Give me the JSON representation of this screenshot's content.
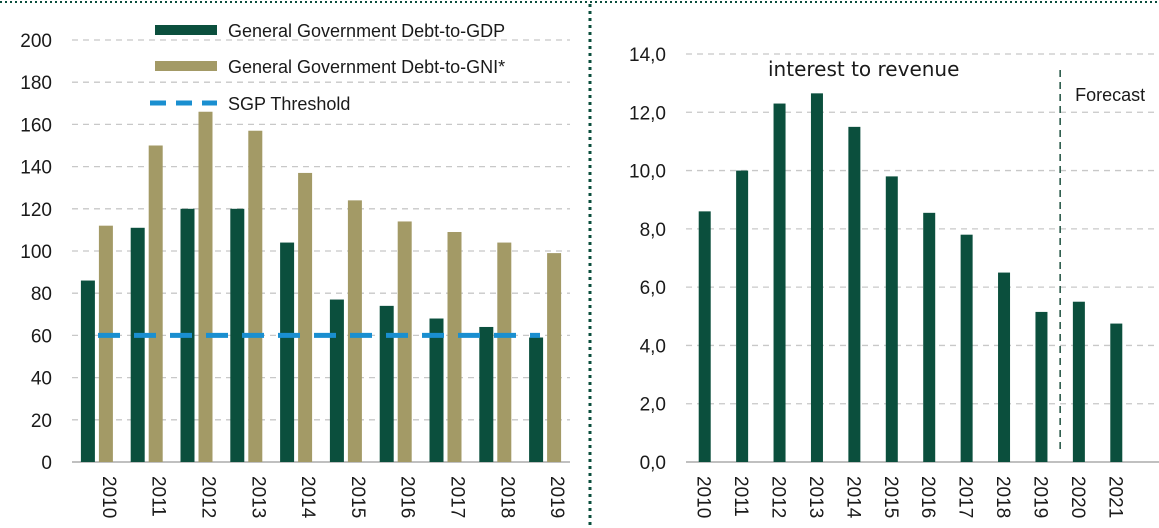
{
  "colors": {
    "gdp": "#0b4f3d",
    "gni": "#a39a66",
    "threshold": "#1a8fd0",
    "grid": "#c8c8c8",
    "dotted_border": "#0b4f3d"
  },
  "chart_data": [
    {
      "type": "bar",
      "categories": [
        "2010",
        "2011",
        "2012",
        "2013",
        "2014",
        "2015",
        "2016",
        "2017",
        "2018",
        "2019"
      ],
      "series": [
        {
          "name": "General Government Debt-to-GDP",
          "values": [
            86,
            111,
            120,
            120,
            104,
            77,
            74,
            68,
            64,
            59
          ]
        },
        {
          "name": "General Government Debt-to-GNI*",
          "values": [
            112,
            150,
            166,
            157,
            137,
            124,
            114,
            109,
            104,
            99
          ]
        }
      ],
      "threshold": {
        "name": "SGP Threshold",
        "value": 60
      },
      "ylim": [
        0,
        200
      ],
      "yticks": [
        "0",
        "20",
        "40",
        "60",
        "80",
        "100",
        "120",
        "140",
        "160",
        "180",
        "200"
      ],
      "grid": true,
      "legend": "top-center"
    },
    {
      "type": "bar",
      "title": "interest to revenue",
      "categories": [
        "2010",
        "2011",
        "2012",
        "2013",
        "2014",
        "2015",
        "2016",
        "2017",
        "2018",
        "2019",
        "2020",
        "2021"
      ],
      "values": [
        8.6,
        10.0,
        12.3,
        12.65,
        11.5,
        9.8,
        8.55,
        7.8,
        6.5,
        5.15,
        5.5,
        4.75
      ],
      "ylim": [
        0,
        14
      ],
      "yticks": [
        "0,0",
        "2,0",
        "4,0",
        "6,0",
        "8,0",
        "10,0",
        "12,0",
        "14,0"
      ],
      "annotation": "Forecast",
      "forecast_start": "2020",
      "grid": true
    }
  ]
}
